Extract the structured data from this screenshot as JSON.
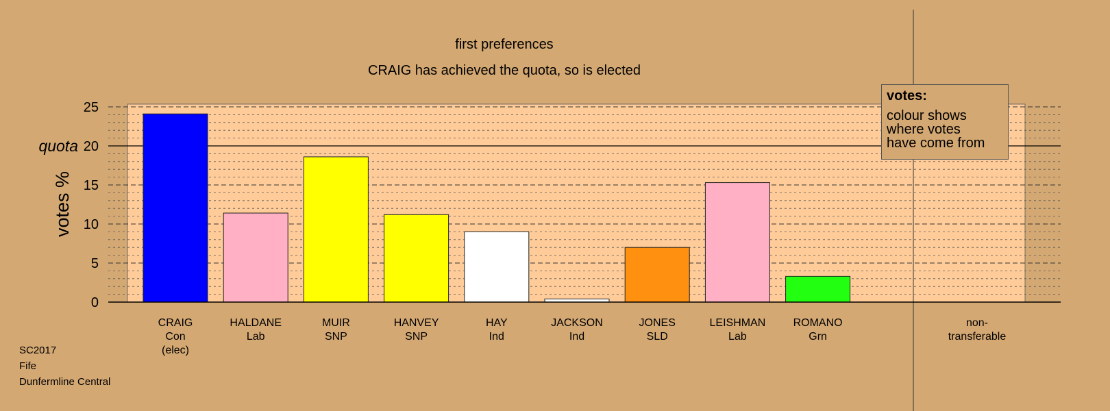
{
  "chart_data": {
    "type": "bar",
    "title": "first preferences",
    "subtitle": "CRAIG has achieved the quota, so is elected",
    "ylabel": "votes %",
    "quota_label": "quota",
    "quota": 20,
    "ylim": [
      0,
      25
    ],
    "yticks": [
      0,
      5,
      10,
      15,
      20,
      25
    ],
    "grid": true,
    "candidates": [
      {
        "name": "CRAIG",
        "party": "Con",
        "note": "(elec)",
        "value": 24.1,
        "color": "#0000ff"
      },
      {
        "name": "HALDANE",
        "party": "Lab",
        "note": "",
        "value": 11.4,
        "color": "#ffb0c4"
      },
      {
        "name": "MUIR",
        "party": "SNP",
        "note": "",
        "value": 18.6,
        "color": "#ffff00"
      },
      {
        "name": "HANVEY",
        "party": "SNP",
        "note": "",
        "value": 11.2,
        "color": "#ffff00"
      },
      {
        "name": "HAY",
        "party": "Ind",
        "note": "",
        "value": 9.0,
        "color": "#ffffff"
      },
      {
        "name": "JACKSON",
        "party": "Ind",
        "note": "",
        "value": 0.4,
        "color": "#ffffff"
      },
      {
        "name": "JONES",
        "party": "SLD",
        "note": "",
        "value": 7.0,
        "color": "#ff9010"
      },
      {
        "name": "LEISHMAN",
        "party": "Lab",
        "note": "",
        "value": 15.3,
        "color": "#ffb0c4"
      },
      {
        "name": "ROMANO",
        "party": "Grn",
        "note": "",
        "value": 3.3,
        "color": "#22ff11"
      }
    ],
    "nontransferable_label_1": "non-",
    "nontransferable_label_2": "transferable",
    "nontransferable_value": 0
  },
  "legend": {
    "title": "votes:",
    "line1": "colour shows",
    "line2": "where votes",
    "line3": "have come from"
  },
  "footer": {
    "line1": "SC2017",
    "line2": "Fife",
    "line3": "Dunfermline Central"
  },
  "colors": {
    "background": "#d4a873",
    "plot_area": "#ffcc99"
  }
}
